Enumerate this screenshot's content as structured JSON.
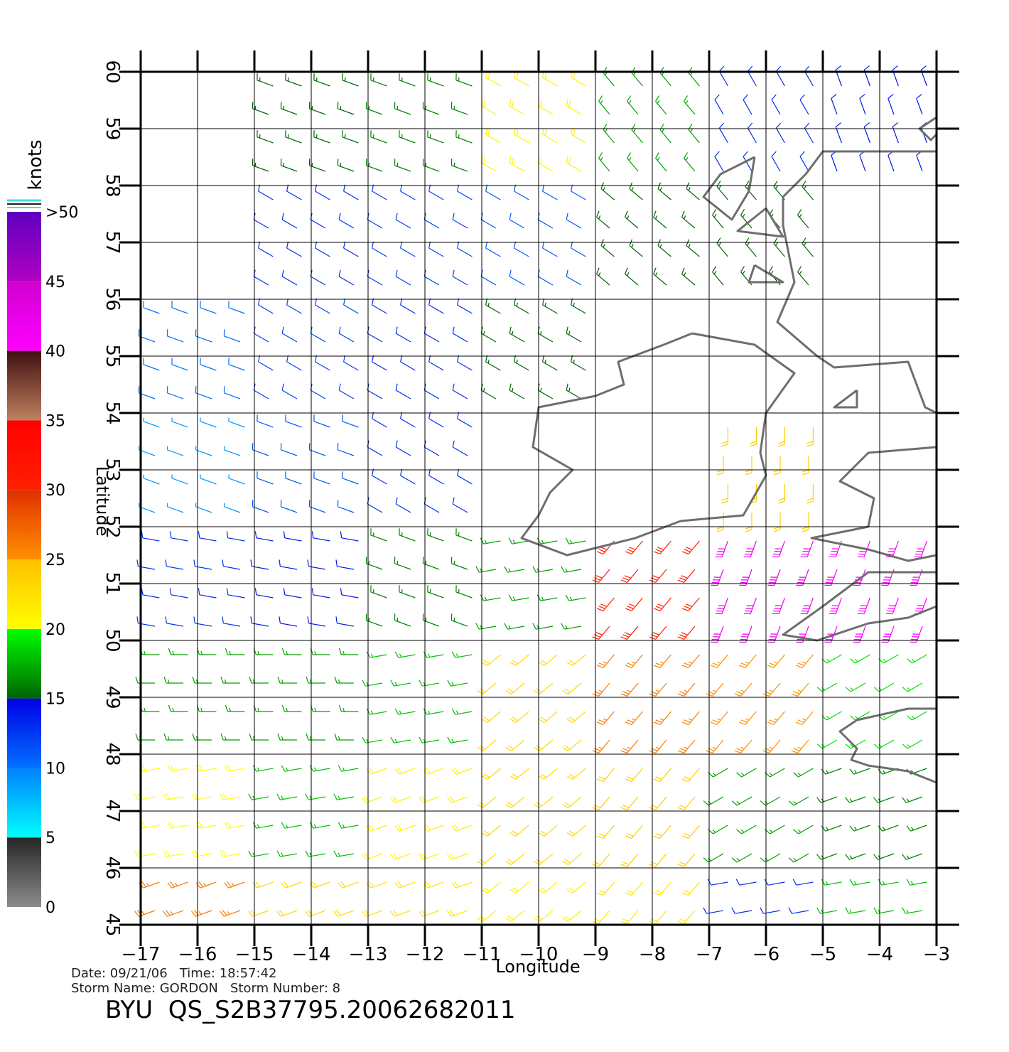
{
  "chart_data": {
    "type": "wind-map",
    "xlabel": "Longitude",
    "ylabel": "Latitude",
    "xlim": [
      -17,
      -3
    ],
    "ylim": [
      45,
      60
    ],
    "xticks": [
      {
        "value": -17,
        "label": "−17"
      },
      {
        "value": -16,
        "label": "−16"
      },
      {
        "value": -15,
        "label": "−15"
      },
      {
        "value": -14,
        "label": "−14"
      },
      {
        "value": -13,
        "label": "−13"
      },
      {
        "value": -12,
        "label": "−12"
      },
      {
        "value": -11,
        "label": "−11"
      },
      {
        "value": -10,
        "label": "−10"
      },
      {
        "value": -9,
        "label": "−9"
      },
      {
        "value": -8,
        "label": "−8"
      },
      {
        "value": -7,
        "label": "−7"
      },
      {
        "value": -6,
        "label": "−6"
      },
      {
        "value": -5,
        "label": "−5"
      },
      {
        "value": -4,
        "label": "−4"
      },
      {
        "value": -3,
        "label": "−3"
      }
    ],
    "yticks": [
      45,
      46,
      47,
      48,
      49,
      50,
      51,
      52,
      53,
      54,
      55,
      56,
      57,
      58,
      59,
      60
    ],
    "grid": true,
    "colorbar": {
      "title": "knots",
      "range": [
        0,
        50
      ],
      "ticks": [
        0,
        5,
        10,
        15,
        20,
        25,
        30,
        35,
        40,
        45,
        {
          "value": 50,
          "label": ">50"
        }
      ],
      "segments": [
        {
          "range": [
            0,
            5
          ],
          "colors": [
            "#8c8c8c",
            "#262626"
          ]
        },
        {
          "range": [
            5,
            10
          ],
          "colors": [
            "#00ffff",
            "#0080ff"
          ]
        },
        {
          "range": [
            10,
            15
          ],
          "colors": [
            "#0070ff",
            "#0000e6"
          ]
        },
        {
          "range": [
            15,
            20
          ],
          "colors": [
            "#006400",
            "#00ff00"
          ]
        },
        {
          "range": [
            20,
            25
          ],
          "colors": [
            "#ffff00",
            "#ffc000"
          ]
        },
        {
          "range": [
            25,
            30
          ],
          "colors": [
            "#ff9000",
            "#e03000"
          ]
        },
        {
          "range": [
            30,
            35
          ],
          "colors": [
            "#ff2000",
            "#ff0000"
          ]
        },
        {
          "range": [
            35,
            40
          ],
          "colors": [
            "#c08060",
            "#401010"
          ]
        },
        {
          "range": [
            40,
            45
          ],
          "colors": [
            "#ff00ff",
            "#d000d0"
          ]
        },
        {
          "range": [
            45,
            50
          ],
          "colors": [
            "#b000c0",
            "#6000c0"
          ]
        }
      ]
    },
    "wind": {
      "cell_size": 2,
      "lons": [
        -16,
        -14,
        -12,
        -10,
        -8,
        -6,
        -4
      ],
      "lats": [
        59,
        57,
        55,
        53,
        51,
        49,
        47,
        45
      ],
      "speed": [
        [
          null,
          15,
          16,
          21,
          17,
          13,
          14
        ],
        [
          null,
          13,
          12,
          11,
          15,
          15,
          null
        ],
        [
          10,
          12,
          13,
          15,
          null,
          null,
          null
        ],
        [
          9,
          11,
          13,
          null,
          null,
          24,
          null
        ],
        [
          13,
          14,
          16,
          17,
          30,
          42,
          40
        ],
        [
          17,
          17,
          18,
          23,
          26,
          25,
          19
        ],
        [
          20,
          18,
          21,
          23,
          24,
          17,
          16
        ],
        [
          26,
          23,
          22,
          21,
          22,
          13,
          18
        ]
      ],
      "direction": [
        [
          null,
          290,
          290,
          300,
          320,
          330,
          340
        ],
        [
          null,
          300,
          300,
          300,
          310,
          320,
          null
        ],
        [
          290,
          300,
          300,
          300,
          null,
          null,
          null
        ],
        [
          290,
          290,
          300,
          null,
          null,
          180,
          null
        ],
        [
          280,
          280,
          290,
          260,
          220,
          200,
          200
        ],
        [
          270,
          270,
          260,
          230,
          220,
          220,
          240
        ],
        [
          260,
          260,
          250,
          230,
          220,
          240,
          250
        ],
        [
          250,
          250,
          250,
          230,
          220,
          260,
          260
        ]
      ]
    },
    "footer": {
      "date_line": "Date: 09/21/06   Time: 18:57:42",
      "storm_line": "Storm Name: GORDON   Storm Number: 8",
      "file_name": "BYU  QS_S2B37795.20062682011"
    }
  }
}
